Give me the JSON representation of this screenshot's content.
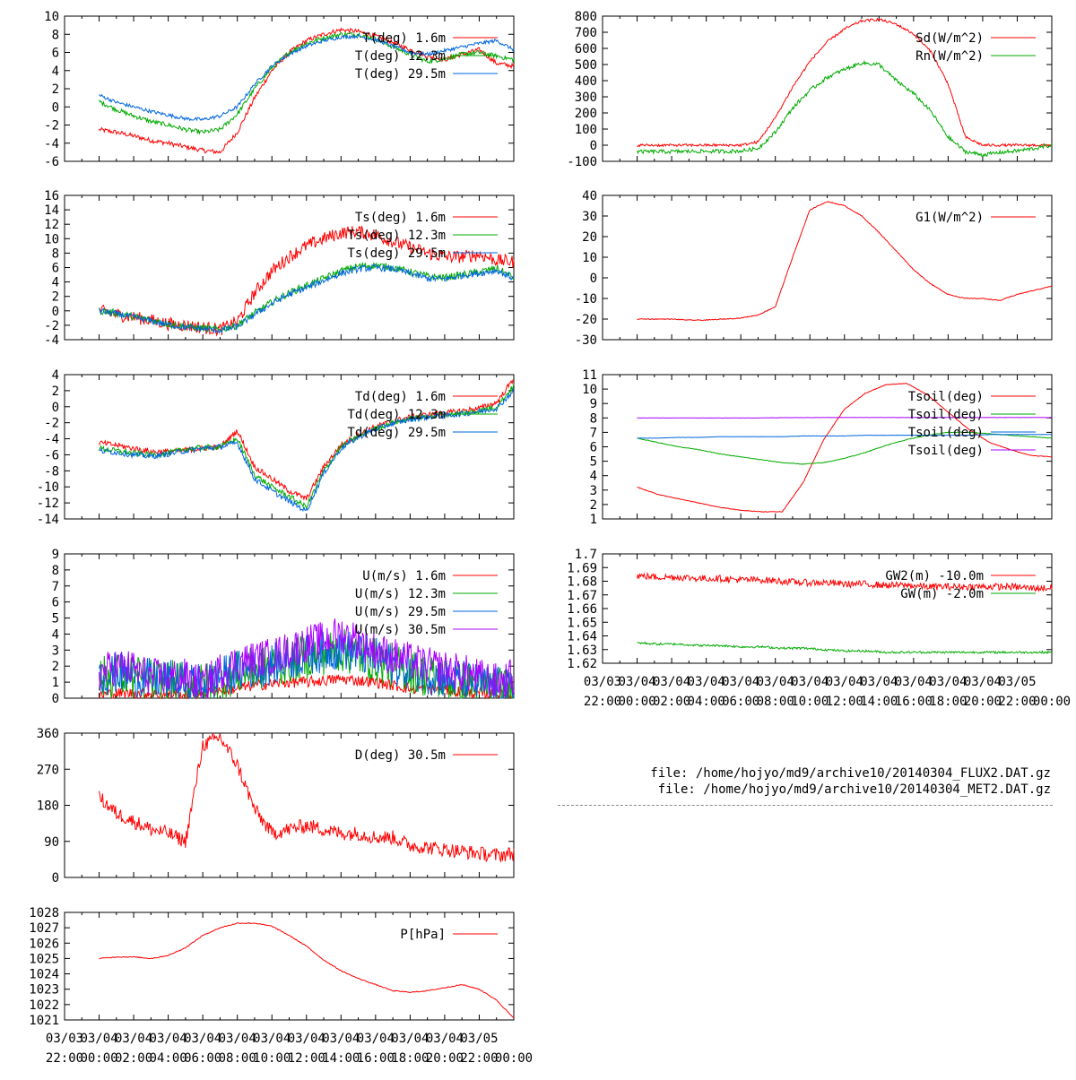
{
  "files": [
    "file: /home/hojyo/md9/archive10/20140304_FLUX2.DAT.gz",
    "file: /home/hojyo/md9/archive10/20140304_MET2.DAT.gz"
  ],
  "x_ticks": {
    "top": [
      "03/03",
      "03/04",
      "03/04",
      "03/04",
      "03/04",
      "03/04",
      "03/04",
      "03/04",
      "03/04",
      "03/04",
      "03/04",
      "03/04",
      "03/05"
    ],
    "bottom": [
      "22:00",
      "00:00",
      "02:00",
      "04:00",
      "06:00",
      "08:00",
      "10:00",
      "12:00",
      "14:00",
      "16:00",
      "18:00",
      "20:00",
      "22:00",
      "00:00"
    ]
  },
  "chart_data": [
    {
      "id": "T",
      "type": "line",
      "ylim": [
        -6,
        10
      ],
      "yticks": [
        -6,
        -4,
        -2,
        0,
        2,
        4,
        6,
        8,
        10
      ],
      "xlim": [
        0,
        26
      ],
      "data_start": 2,
      "data_end": 26,
      "series": [
        {
          "name": "T(deg)  1.6m",
          "color": "#ff0000",
          "noise": 0.25,
          "values": [
            -2.5,
            -2.8,
            -3.2,
            -3.7,
            -4.0,
            -4.4,
            -4.8,
            -5.0,
            -2.8,
            1.0,
            4.0,
            6.0,
            7.3,
            8.0,
            8.5,
            8.3,
            7.8,
            7.1,
            6.3,
            5.6,
            5.2,
            5.8,
            6.3,
            4.8,
            4.5
          ]
        },
        {
          "name": "T(deg) 12.3m",
          "color": "#00aa00",
          "noise": 0.25,
          "values": [
            0.6,
            -0.3,
            -1.0,
            -1.6,
            -2.0,
            -2.5,
            -2.8,
            -2.5,
            -0.8,
            2.0,
            4.3,
            6.0,
            7.0,
            7.6,
            8.0,
            8.0,
            7.5,
            6.6,
            5.8,
            5.0,
            5.3,
            5.8,
            6.0,
            5.6,
            5.2
          ]
        },
        {
          "name": "T(deg) 29.5m",
          "color": "#0066dd",
          "noise": 0.2,
          "values": [
            1.3,
            0.5,
            0.0,
            -0.5,
            -0.9,
            -1.3,
            -1.4,
            -1.0,
            0.0,
            2.5,
            4.5,
            5.8,
            6.7,
            7.3,
            7.7,
            7.8,
            7.4,
            6.7,
            6.0,
            5.8,
            6.2,
            6.6,
            7.0,
            7.3,
            6.3
          ]
        }
      ]
    },
    {
      "id": "Ts",
      "type": "line",
      "ylim": [
        -4,
        16
      ],
      "yticks": [
        -4,
        -2,
        0,
        2,
        4,
        6,
        8,
        10,
        12,
        14,
        16
      ],
      "xlim": [
        0,
        26
      ],
      "data_start": 2,
      "data_end": 26,
      "series": [
        {
          "name": "Ts(deg)  1.6m",
          "color": "#ff0000",
          "noise": 0.9,
          "values": [
            0.0,
            -0.5,
            -0.9,
            -1.3,
            -1.8,
            -2.0,
            -2.3,
            -2.6,
            -1.5,
            2.5,
            5.5,
            7.5,
            9.0,
            10.0,
            10.8,
            11.0,
            10.5,
            9.6,
            8.8,
            8.0,
            7.5,
            7.5,
            7.8,
            7.0,
            6.8
          ]
        },
        {
          "name": "Ts(deg) 12.3m",
          "color": "#00aa00",
          "noise": 0.5,
          "values": [
            0.0,
            -0.3,
            -0.8,
            -1.3,
            -1.8,
            -2.2,
            -2.4,
            -2.6,
            -2.0,
            -0.3,
            1.2,
            2.5,
            3.5,
            4.5,
            5.5,
            6.2,
            6.3,
            6.0,
            5.4,
            4.8,
            4.6,
            5.0,
            5.4,
            5.9,
            4.6
          ]
        },
        {
          "name": "Ts(deg) 29.5m",
          "color": "#0066dd",
          "noise": 0.45,
          "values": [
            0.0,
            -0.4,
            -0.9,
            -1.4,
            -1.9,
            -2.3,
            -2.5,
            -2.7,
            -2.2,
            -0.5,
            1.0,
            2.3,
            3.2,
            4.2,
            5.2,
            5.8,
            6.0,
            5.8,
            5.2,
            4.5,
            4.4,
            4.9,
            5.2,
            5.6,
            4.5
          ]
        }
      ]
    },
    {
      "id": "Td",
      "type": "line",
      "ylim": [
        -14,
        4
      ],
      "yticks": [
        -14,
        -12,
        -10,
        -8,
        -6,
        -4,
        -2,
        0,
        2,
        4
      ],
      "xlim": [
        0,
        26
      ],
      "data_start": 2,
      "data_end": 26,
      "series": [
        {
          "name": "Td(deg)  1.6m",
          "color": "#ff0000",
          "noise": 0.35,
          "values": [
            -4.5,
            -4.8,
            -5.2,
            -5.6,
            -5.6,
            -5.4,
            -5.2,
            -5.0,
            -3.0,
            -7.5,
            -9.0,
            -10.5,
            -11.5,
            -7.5,
            -4.8,
            -3.5,
            -2.5,
            -1.8,
            -1.3,
            -1.0,
            -0.8,
            -0.5,
            -0.2,
            0.5,
            3.5
          ]
        },
        {
          "name": "Td(deg) 12.3m",
          "color": "#00aa00",
          "noise": 0.35,
          "values": [
            -5.2,
            -5.5,
            -5.8,
            -6.0,
            -5.8,
            -5.3,
            -5.1,
            -5.0,
            -4.0,
            -8.5,
            -10.0,
            -11.2,
            -12.5,
            -8.0,
            -5.0,
            -3.7,
            -2.7,
            -2.0,
            -1.5,
            -1.2,
            -1.0,
            -0.8,
            -0.5,
            0.0,
            2.6
          ]
        },
        {
          "name": "Td(deg) 29.5m",
          "color": "#0066dd",
          "noise": 0.35,
          "values": [
            -5.5,
            -5.7,
            -6.0,
            -6.2,
            -5.9,
            -5.5,
            -5.2,
            -5.0,
            -4.5,
            -9.0,
            -10.5,
            -11.8,
            -13.0,
            -8.3,
            -5.2,
            -3.8,
            -2.8,
            -2.1,
            -1.6,
            -1.3,
            -1.1,
            -0.9,
            -0.6,
            -0.2,
            2.0
          ]
        }
      ]
    },
    {
      "id": "U",
      "type": "line",
      "ylim": [
        0,
        9
      ],
      "yticks": [
        0,
        1,
        2,
        3,
        4,
        5,
        6,
        7,
        8,
        9
      ],
      "xlim": [
        0,
        26
      ],
      "data_start": 2,
      "data_end": 26,
      "series": [
        {
          "name": "U(m/s)  1.6m",
          "color": "#ff0000",
          "noise": 0.35,
          "floor": 0,
          "values": [
            0.2,
            0.3,
            0.3,
            0.3,
            0.2,
            0.2,
            0.3,
            0.5,
            0.6,
            0.8,
            0.9,
            1.0,
            1.0,
            1.1,
            1.2,
            1.1,
            1.0,
            0.8,
            0.6,
            0.6,
            0.5,
            0.4,
            0.3,
            0.2,
            0.2
          ]
        },
        {
          "name": "U(m/s) 12.3m",
          "color": "#00aa00",
          "noise": 1.4,
          "floor": 0,
          "values": [
            1.2,
            1.5,
            1.3,
            1.1,
            1.0,
            0.9,
            0.8,
            1.2,
            1.6,
            1.8,
            2.0,
            2.3,
            2.6,
            2.8,
            3.0,
            2.7,
            2.4,
            2.0,
            1.7,
            1.4,
            1.2,
            1.0,
            0.8,
            0.6,
            0.4
          ]
        },
        {
          "name": "U(m/s) 29.5m",
          "color": "#0066dd",
          "noise": 1.3,
          "floor": 0,
          "values": [
            1.3,
            1.6,
            1.4,
            1.2,
            1.1,
            1.0,
            0.9,
            1.3,
            1.7,
            1.9,
            2.1,
            2.4,
            2.7,
            2.9,
            3.1,
            2.8,
            2.5,
            2.1,
            1.8,
            1.5,
            1.3,
            1.1,
            0.9,
            0.7,
            0.5
          ]
        },
        {
          "name": "U(m/s) 30.5m",
          "color": "#aa00ff",
          "noise": 1.2,
          "floor": 0,
          "values": [
            1.5,
            2.0,
            1.8,
            1.3,
            1.3,
            1.3,
            0.8,
            1.7,
            2.2,
            2.4,
            2.6,
            3.0,
            3.4,
            3.6,
            4.0,
            3.6,
            3.0,
            2.6,
            2.3,
            2.0,
            1.8,
            1.6,
            1.3,
            1.0,
            1.3
          ]
        }
      ]
    },
    {
      "id": "D",
      "type": "line",
      "ylim": [
        0,
        360
      ],
      "yticks": [
        0,
        90,
        180,
        270,
        360
      ],
      "xlim": [
        0,
        26
      ],
      "data_start": 2,
      "data_end": 26,
      "series": [
        {
          "name": "D(deg)  30.5m",
          "color": "#ff0000",
          "noise": 18,
          "floor": 0,
          "ceil": 360,
          "values": [
            200,
            160,
            140,
            120,
            110,
            90,
            330,
            350,
            280,
            170,
            110,
            120,
            130,
            120,
            110,
            110,
            100,
            100,
            80,
            75,
            70,
            65,
            60,
            55,
            60
          ]
        }
      ]
    },
    {
      "id": "P",
      "type": "line",
      "ylim": [
        1021,
        1028
      ],
      "yticks": [
        1021,
        1022,
        1023,
        1024,
        1025,
        1026,
        1027,
        1028
      ],
      "xlim": [
        0,
        26
      ],
      "data_start": 2,
      "data_end": 26,
      "series": [
        {
          "name": "P[hPa]",
          "color": "#ff0000",
          "noise": 0.03,
          "values": [
            1025.0,
            1025.1,
            1025.1,
            1025.0,
            1025.2,
            1025.7,
            1026.5,
            1027.0,
            1027.3,
            1027.3,
            1027.1,
            1026.5,
            1025.8,
            1024.9,
            1024.2,
            1023.7,
            1023.3,
            1022.9,
            1022.8,
            1022.9,
            1023.1,
            1023.3,
            1023.0,
            1022.3,
            1021.1
          ]
        }
      ]
    },
    {
      "id": "Sd",
      "type": "line",
      "ylim": [
        -100,
        800
      ],
      "yticks": [
        -100,
        0,
        100,
        200,
        300,
        400,
        500,
        600,
        700,
        800
      ],
      "xlim": [
        0,
        26
      ],
      "data_start": 2,
      "data_end": 26,
      "series": [
        {
          "name": "Sd(W/m^2)",
          "color": "#ff0000",
          "noise": 8,
          "values": [
            0,
            0,
            0,
            0,
            0,
            0,
            0,
            20,
            170,
            360,
            520,
            640,
            720,
            770,
            780,
            750,
            690,
            580,
            380,
            50,
            0,
            0,
            0,
            0,
            0
          ]
        },
        {
          "name": "Rn(W/m^2)",
          "color": "#00aa00",
          "noise": 12,
          "values": [
            -40,
            -40,
            -40,
            -38,
            -38,
            -38,
            -36,
            -20,
            80,
            230,
            340,
            420,
            470,
            510,
            500,
            400,
            320,
            210,
            50,
            -40,
            -60,
            -45,
            -35,
            -20,
            0
          ]
        }
      ]
    },
    {
      "id": "G1",
      "type": "line",
      "ylim": [
        -30,
        40
      ],
      "yticks": [
        -30,
        -20,
        -10,
        0,
        10,
        20,
        30,
        40
      ],
      "xlim": [
        0,
        26
      ],
      "data_start": 2,
      "data_end": 26,
      "series": [
        {
          "name": "G1(W/m^2)",
          "color": "#ff0000",
          "noise": 0.2,
          "values": [
            -20,
            -20,
            -20,
            -20.5,
            -20.5,
            -20,
            -19.5,
            -18,
            -14,
            10,
            33,
            37,
            35,
            30,
            22,
            13,
            4,
            -3,
            -8,
            -10,
            -10,
            -11,
            -8,
            -6,
            -4
          ]
        }
      ]
    },
    {
      "id": "Tsoil",
      "type": "line",
      "ylim": [
        1,
        11
      ],
      "yticks": [
        1,
        2,
        3,
        4,
        5,
        6,
        7,
        8,
        9,
        10,
        11
      ],
      "xlim": [
        0,
        26
      ],
      "data_start": 2,
      "data_end": 26,
      "series": [
        {
          "name": "Tsoil(deg)",
          "color": "#ff0000",
          "noise": 0.02,
          "values": [
            3.2,
            2.7,
            2.4,
            2.1,
            1.8,
            1.6,
            1.5,
            1.5,
            3.5,
            6.5,
            8.6,
            9.7,
            10.3,
            10.4,
            9.6,
            8.4,
            7.2,
            6.3,
            5.8,
            5.4,
            5.3
          ]
        },
        {
          "name": "Tsoil(deg)",
          "color": "#00aa00",
          "noise": 0.02,
          "values": [
            6.6,
            6.3,
            6.0,
            5.8,
            5.5,
            5.3,
            5.1,
            4.9,
            4.8,
            4.9,
            5.2,
            5.6,
            6.1,
            6.5,
            6.8,
            7.0,
            7.0,
            6.9,
            6.8,
            6.7,
            6.6
          ]
        },
        {
          "name": "Tsoil(deg)",
          "color": "#0066dd",
          "noise": 0.01,
          "values": [
            6.6,
            6.6,
            6.65,
            6.65,
            6.7,
            6.7,
            6.7,
            6.7,
            6.75,
            6.75,
            6.75,
            6.8,
            6.8,
            6.8,
            6.8,
            6.8,
            6.8,
            6.85,
            6.85,
            6.85,
            6.85
          ]
        },
        {
          "name": "Tsoil(deg)",
          "color": "#aa00ff",
          "noise": 0.01,
          "values": [
            8.0,
            8.0,
            8.0,
            8.0,
            8.0,
            8.0,
            8.0,
            8.02,
            8.02,
            8.03,
            8.03,
            8.03,
            8.03,
            8.03,
            8.03,
            8.03,
            8.03,
            8.03,
            8.03,
            8.03,
            8.03
          ]
        }
      ]
    },
    {
      "id": "GW",
      "type": "line",
      "ylim": [
        1.62,
        1.7
      ],
      "yticks": [
        1.62,
        1.63,
        1.64,
        1.65,
        1.66,
        1.67,
        1.68,
        1.69,
        1.7
      ],
      "xlim": [
        0,
        26
      ],
      "data_start": 2,
      "data_end": 26,
      "series": [
        {
          "name": "GW2(m) -10.0m",
          "color": "#ff0000",
          "noise": 0.0025,
          "values": [
            1.684,
            1.683,
            1.683,
            1.682,
            1.682,
            1.681,
            1.681,
            1.68,
            1.679,
            1.679,
            1.678,
            1.678,
            1.677,
            1.677,
            1.676,
            1.676,
            1.676,
            1.676,
            1.676,
            1.675,
            1.675
          ]
        },
        {
          "name": "GW(m)  -2.0m",
          "color": "#00aa00",
          "noise": 0.0008,
          "values": [
            1.635,
            1.634,
            1.634,
            1.633,
            1.633,
            1.632,
            1.632,
            1.631,
            1.631,
            1.63,
            1.629,
            1.629,
            1.628,
            1.628,
            1.628,
            1.628,
            1.628,
            1.628,
            1.628,
            1.628,
            1.628
          ]
        }
      ]
    }
  ]
}
